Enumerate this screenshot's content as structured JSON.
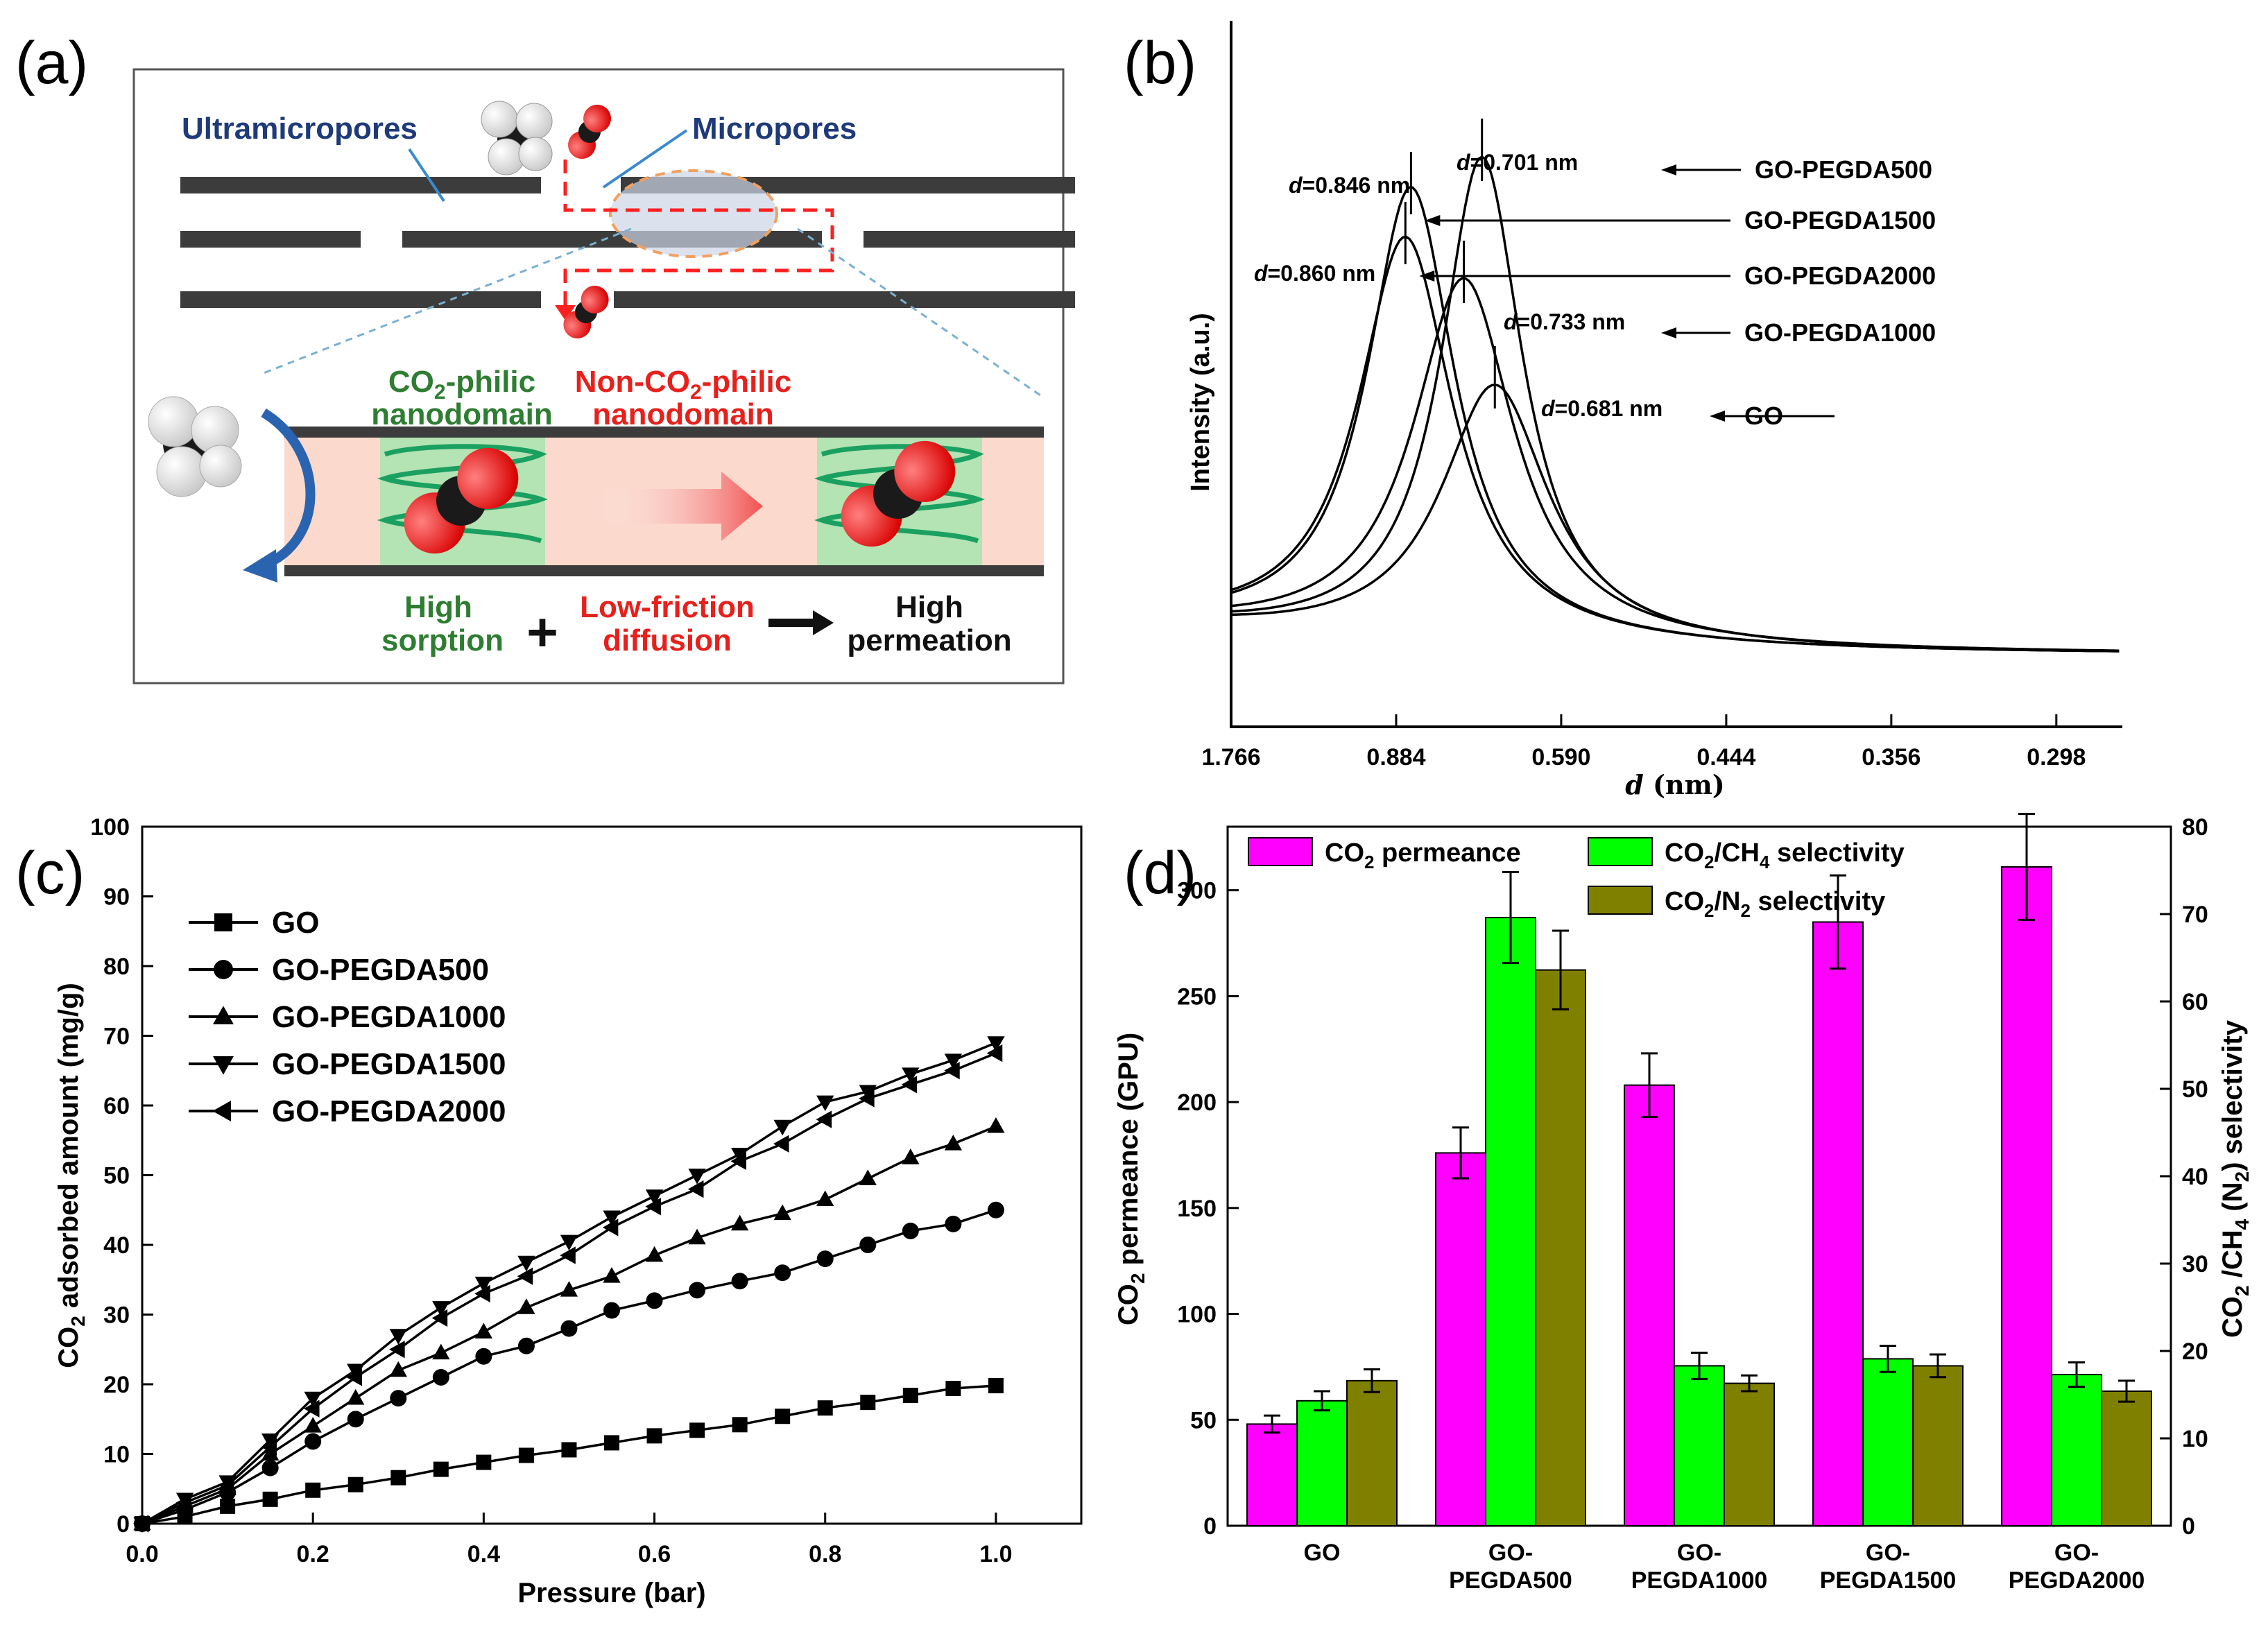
{
  "panel_labels": {
    "a": "(a)",
    "b": "(b)",
    "c": "(c)",
    "d": "(d)"
  },
  "colors": {
    "pink": "#ff00ff",
    "green": "#00ff00",
    "olive": "#808000",
    "navy": "#1f3a7a",
    "red": "#e8201c",
    "darkgreen": "#2e7d32",
    "channel": "#fbd9cc",
    "domain": "#b4e3b4"
  },
  "schematic": {
    "ultramicropores": "Ultramicropores",
    "micropores": "Micropores",
    "co2_philic_1": "CO",
    "co2_philic_sub": "2",
    "co2_philic_2": "-philic",
    "co2_philic_3": "nanodomain",
    "non_co2_1": "Non-CO",
    "non_co2_sub": "2",
    "non_co2_2": "-philic",
    "non_co2_3": "nanodomain",
    "high_sorption_1": "High",
    "high_sorption_2": "sorption",
    "plus": "+",
    "low_friction_1": "Low-friction",
    "low_friction_2": "diffusion",
    "high_perm_1": "High",
    "high_perm_2": "permeation"
  },
  "chart_data": [
    {
      "panel": "b",
      "type": "line",
      "ylabel": "Intensity (a.u.)",
      "xlabel_italic": "d",
      "xlabel_rest": " (nm)",
      "x_ticks": [
        "1.766",
        "0.884",
        "0.590",
        "0.444",
        "0.356",
        "0.298"
      ],
      "series": [
        {
          "name": "GO-PEGDA500",
          "d_label": "d",
          "d_value": "=0.701 nm",
          "peak_2theta": 12.6,
          "intensity": 0.88
        },
        {
          "name": "GO-PEGDA1500",
          "d_label": "d",
          "d_value": "=0.846 nm",
          "peak_2theta": 10.45,
          "intensity": 0.82
        },
        {
          "name": "GO-PEGDA2000",
          "d_label": "d",
          "d_value": "=0.860 nm",
          "peak_2theta": 10.28,
          "intensity": 0.73
        },
        {
          "name": "GO-PEGDA1000",
          "d_label": "d",
          "d_value": "=0.733 nm",
          "peak_2theta": 12.05,
          "intensity": 0.66
        },
        {
          "name": "GO",
          "d_label": "d",
          "d_value": "=0.681 nm",
          "peak_2theta": 12.99,
          "intensity": 0.47
        }
      ]
    },
    {
      "panel": "c",
      "type": "line",
      "xlabel": "Pressure (bar)",
      "ylabel_pre": "CO",
      "ylabel_sub": "2",
      "ylabel_post": " adsorbed amount (mg/g)",
      "xlim": [
        0,
        1.1
      ],
      "ylim": [
        0,
        100
      ],
      "x_ticks": [
        "0.0",
        "0.2",
        "0.4",
        "0.6",
        "0.8",
        "1.0"
      ],
      "y_ticks": [
        "0",
        "10",
        "20",
        "30",
        "40",
        "50",
        "60",
        "70",
        "80",
        "90",
        "100"
      ],
      "x": [
        0,
        0.05,
        0.1,
        0.15,
        0.2,
        0.25,
        0.3,
        0.35,
        0.4,
        0.45,
        0.5,
        0.55,
        0.6,
        0.65,
        0.7,
        0.75,
        0.8,
        0.85,
        0.9,
        0.95,
        1.0
      ],
      "series": [
        {
          "name": "GO",
          "marker": "square",
          "values": [
            0,
            1,
            2.5,
            3.5,
            4.8,
            5.6,
            6.6,
            7.8,
            8.8,
            9.8,
            10.6,
            11.6,
            12.6,
            13.4,
            14.2,
            15.4,
            16.6,
            17.4,
            18.4,
            19.4,
            19.8
          ]
        },
        {
          "name": "GO-PEGDA500",
          "marker": "circle",
          "values": [
            0,
            2,
            4.5,
            8,
            11.8,
            15,
            18,
            21,
            24,
            25.5,
            28,
            30.6,
            32,
            33.5,
            34.8,
            36,
            38,
            40,
            42,
            43,
            45
          ]
        },
        {
          "name": "GO-PEGDA1000",
          "marker": "triangle-up",
          "values": [
            0,
            2.5,
            5,
            10,
            14,
            18,
            22,
            24.5,
            27.5,
            31,
            33.5,
            35.5,
            38.5,
            41,
            43,
            44.5,
            46.5,
            49.5,
            52.5,
            54.5,
            57
          ]
        },
        {
          "name": "GO-PEGDA1500",
          "marker": "triangle-down",
          "values": [
            0,
            3.5,
            6,
            12,
            18,
            22,
            27,
            31,
            34.5,
            37.5,
            40.5,
            44,
            47,
            50,
            53,
            57,
            60.5,
            62,
            64.5,
            66.5,
            69
          ]
        },
        {
          "name": "GO-PEGDA2000",
          "marker": "triangle-left",
          "values": [
            0,
            3,
            5.5,
            11,
            16.5,
            21,
            25,
            29.5,
            33,
            35.5,
            38.5,
            42.5,
            45.5,
            48,
            52,
            54.5,
            58,
            61,
            63,
            65,
            67.5
          ]
        }
      ]
    },
    {
      "panel": "d",
      "type": "bar",
      "categories": [
        [
          "GO"
        ],
        [
          "GO-",
          "PEGDA500"
        ],
        [
          "GO-",
          "PEGDA1000"
        ],
        [
          "GO-",
          "PEGDA1500"
        ],
        [
          "GO-",
          "PEGDA2000"
        ]
      ],
      "ylabel_left_pre": "CO",
      "ylabel_left_sub": "2",
      "ylabel_left_post": " permeance (GPU)",
      "ylabel_right_a": "CO",
      "ylabel_right_sub1": "2",
      "ylabel_right_b": " /CH",
      "ylabel_right_sub2": "4",
      "ylabel_right_c": " (N",
      "ylabel_right_sub3": "2",
      "ylabel_right_d": ") selectivity",
      "ylim_left": [
        0,
        330
      ],
      "ylim_right": [
        0,
        80
      ],
      "y_ticks_left": [
        "0",
        "50",
        "100",
        "150",
        "200",
        "250",
        "300"
      ],
      "y_ticks_right": [
        "0",
        "10",
        "20",
        "30",
        "40",
        "50",
        "60",
        "70",
        "80"
      ],
      "series": [
        {
          "name_pre": "CO",
          "name_sub": "2",
          "name_post": " permeance",
          "axis": "left",
          "color": "#ff00ff",
          "values": [
            48,
            176,
            208,
            285,
            311
          ],
          "errors": [
            4,
            12,
            15,
            22,
            25
          ]
        },
        {
          "name_pre": "CO",
          "name_sub": "2",
          "name_post": "/CH",
          "name_sub2": "4",
          "name_post2": " selectivity",
          "axis": "right",
          "color": "#00ff00",
          "values": [
            14.3,
            69.6,
            18.3,
            19.1,
            17.3
          ],
          "errors": [
            1.1,
            5.2,
            1.5,
            1.5,
            1.4
          ]
        },
        {
          "name_pre": "CO",
          "name_sub": "2",
          "name_post": "/N",
          "name_sub2": "2",
          "name_post2": " selectivity",
          "axis": "right",
          "color": "#808000",
          "values": [
            16.6,
            63.6,
            16.3,
            18.3,
            15.4
          ],
          "errors": [
            1.3,
            4.5,
            0.9,
            1.3,
            1.2
          ]
        }
      ]
    }
  ]
}
